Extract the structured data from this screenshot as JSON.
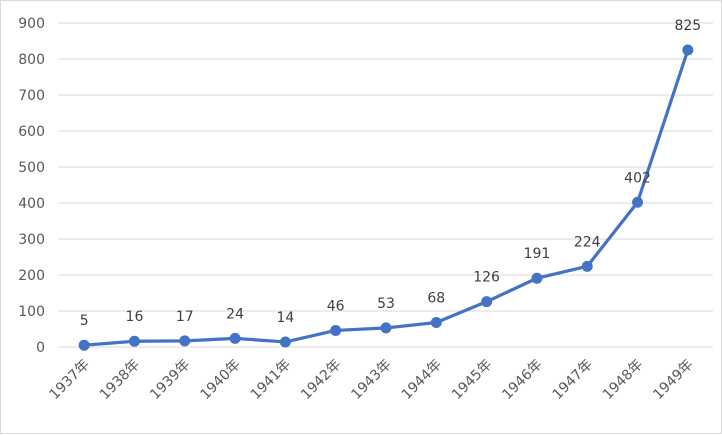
{
  "chart_data": {
    "type": "line",
    "title": "",
    "xlabel": "",
    "ylabel": "",
    "categories": [
      "1937年",
      "1938年",
      "1939年",
      "1940年",
      "1941年",
      "1942年",
      "1943年",
      "1944年",
      "1945年",
      "1946年",
      "1947年",
      "1948年",
      "1949年"
    ],
    "series": [
      {
        "values": [
          5,
          16,
          17,
          24,
          14,
          46,
          53,
          68,
          126,
          191,
          224,
          402,
          825
        ]
      }
    ],
    "y_ticks": [
      0,
      100,
      200,
      300,
      400,
      500,
      600,
      700,
      800,
      900
    ],
    "ylim": [
      0,
      900
    ],
    "grid": true,
    "legend": "none",
    "data_labels": true,
    "line_color": "#4472C4",
    "grid_color": "#d9d9d9",
    "tick_label_color": "#595959",
    "data_label_color": "#404040"
  }
}
